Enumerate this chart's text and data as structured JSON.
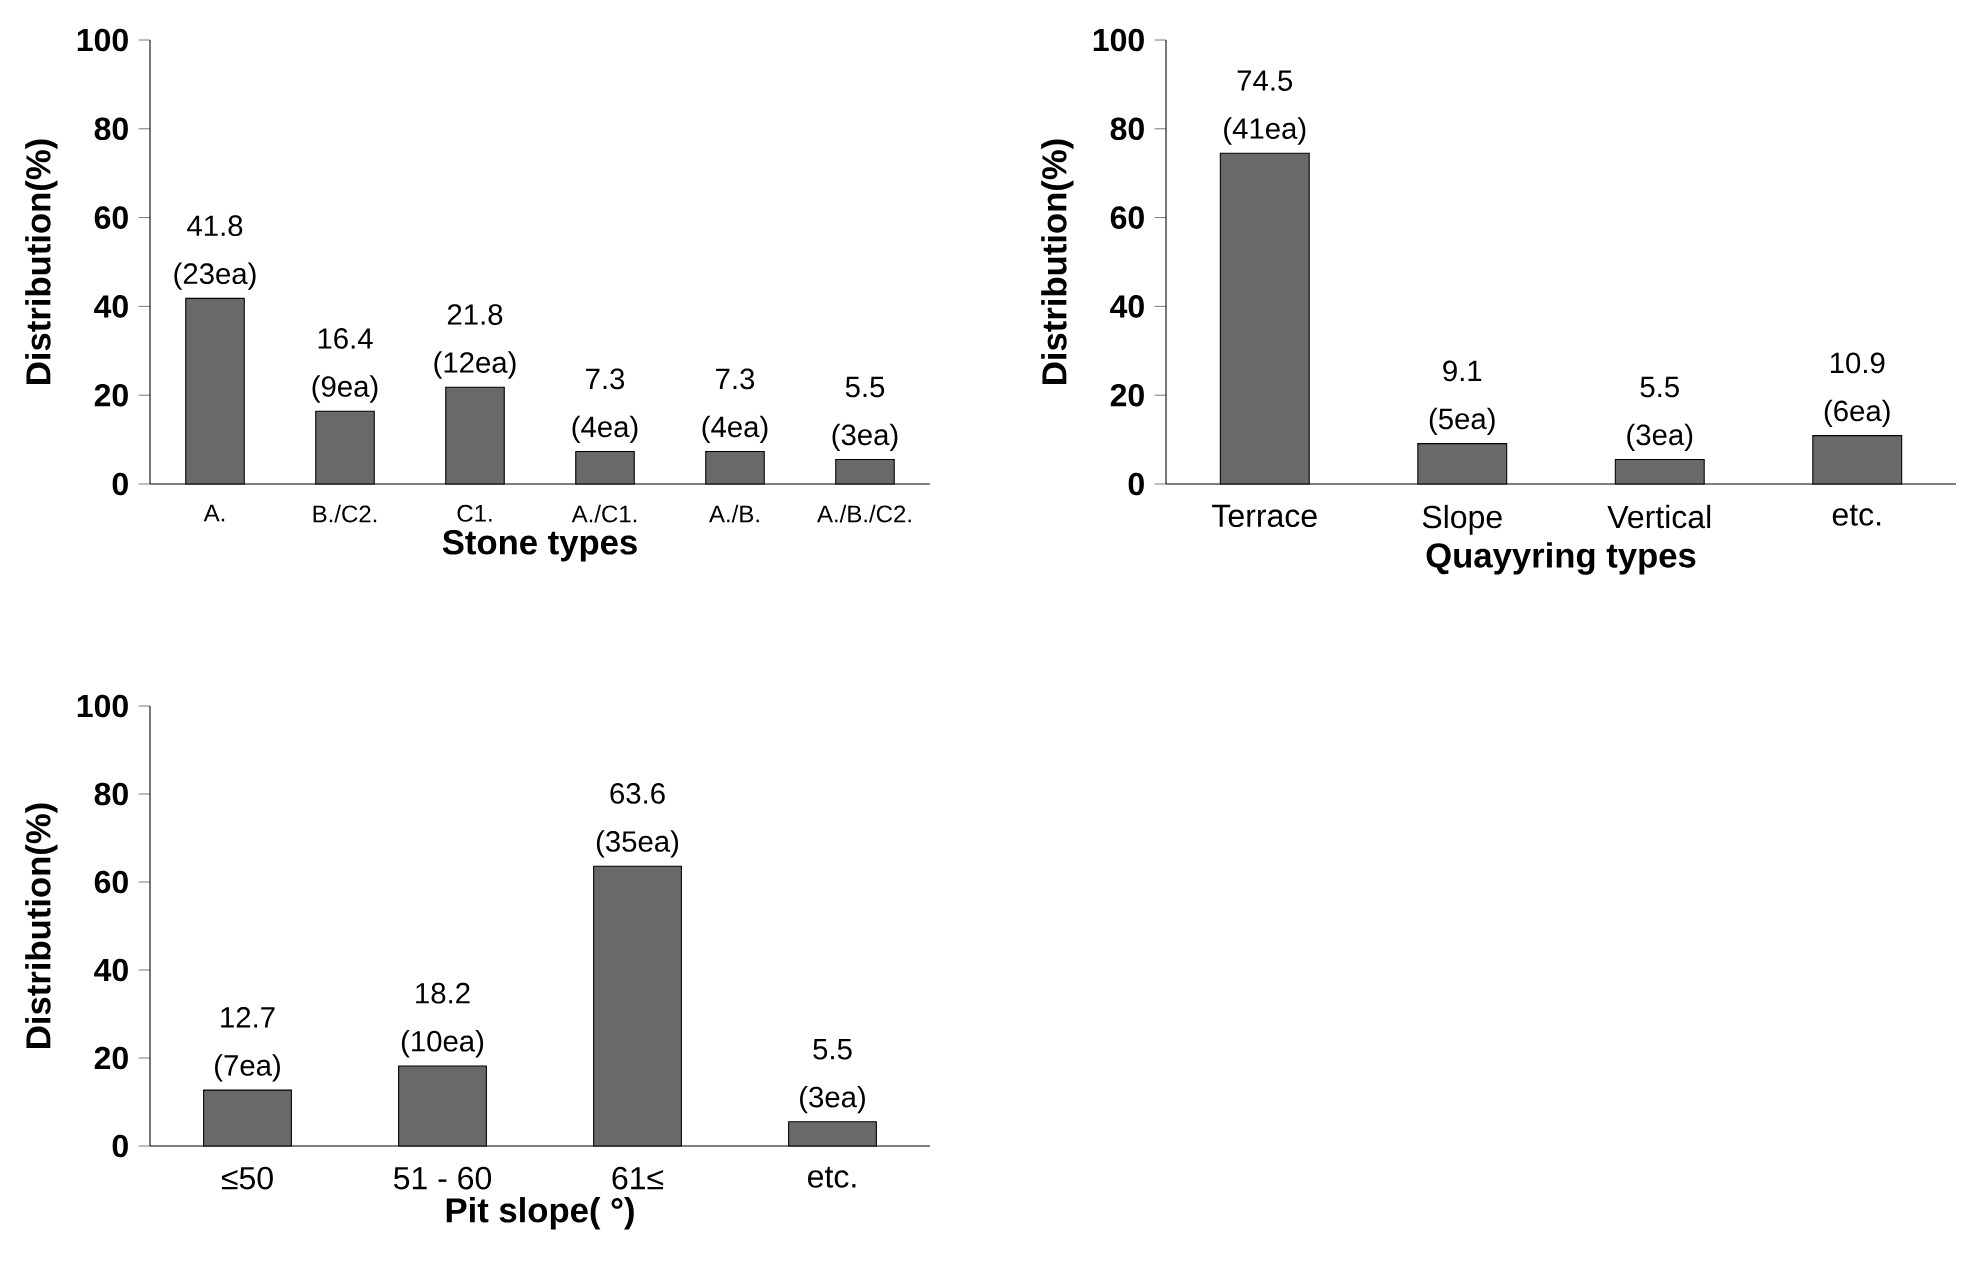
{
  "chart_data": [
    {
      "type": "bar",
      "categories": [
        "A.",
        "B./C2.",
        "C1.",
        "A./C1.",
        "A./B.",
        "A./B./C2."
      ],
      "values": [
        41.8,
        16.4,
        21.8,
        7.3,
        7.3,
        5.5
      ],
      "value_labels": [
        "41.8 (23ea)",
        "16.4 (9ea)",
        "21.8 (12ea)",
        "7.3 (4ea)",
        "7.3 (4ea)",
        "5.5 (3ea)"
      ],
      "color": "#696969",
      "xlabel": "Stone types",
      "ylabel": "Distribution(%)",
      "ylim": [
        0,
        100
      ],
      "yticks": [
        0,
        20,
        40,
        60,
        80,
        100
      ]
    },
    {
      "type": "bar",
      "categories": [
        "Terrace",
        "Slope",
        "Vertical",
        "etc."
      ],
      "values": [
        74.5,
        9.1,
        5.5,
        10.9
      ],
      "value_labels": [
        "74.5 (41ea)",
        "9.1 (5ea)",
        "5.5 (3ea)",
        "10.9 (6ea)"
      ],
      "color": "#696969",
      "xlabel": "Quayyring types",
      "ylabel": "Distribution(%)",
      "ylim": [
        0,
        100
      ],
      "yticks": [
        0,
        20,
        40,
        60,
        80,
        100
      ]
    },
    {
      "type": "bar",
      "categories": [
        "≤50",
        "51 - 60",
        "61≤",
        "etc."
      ],
      "values": [
        12.7,
        18.2,
        63.6,
        5.5
      ],
      "value_labels": [
        "12.7 (7ea)",
        "18.2 (10ea)",
        "63.6 (35ea)",
        "5.5 (3ea)"
      ],
      "color": "#696969",
      "xlabel": "Pit slope( °)",
      "ylabel": "Distribution(%)",
      "ylim": [
        0,
        100
      ],
      "yticks": [
        0,
        20,
        40,
        60,
        80,
        100
      ]
    }
  ]
}
